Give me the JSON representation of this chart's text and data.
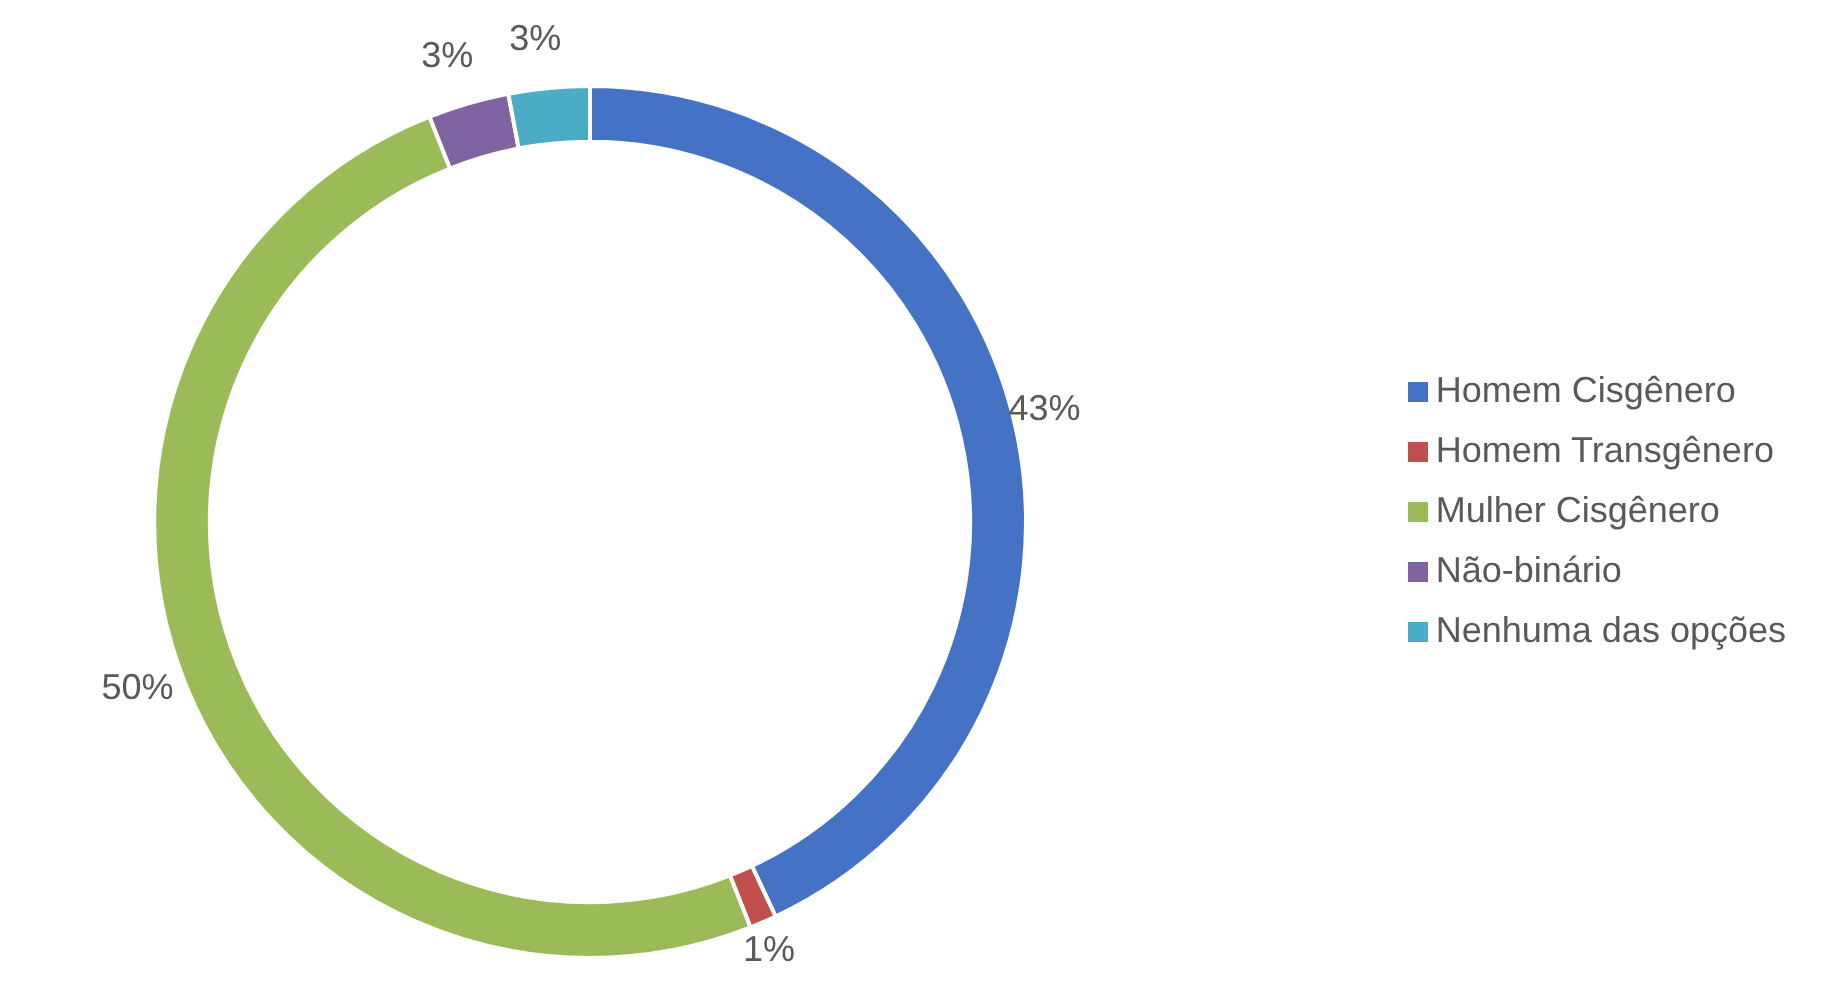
{
  "chart_data": {
    "type": "donut",
    "categories": [
      "Homem Cisgênero",
      "Homem Transgênero",
      "Mulher Cisgênero",
      "Não-binário",
      "Nenhuma das opções"
    ],
    "values": [
      43,
      1,
      50,
      3,
      3
    ],
    "colors": [
      "#4472c4",
      "#c0504d",
      "#9bbb59",
      "#8064a2",
      "#4bacc6"
    ],
    "value_labels": [
      "43%",
      "1%",
      "50%",
      "3%",
      "3%"
    ],
    "legend": "right"
  }
}
